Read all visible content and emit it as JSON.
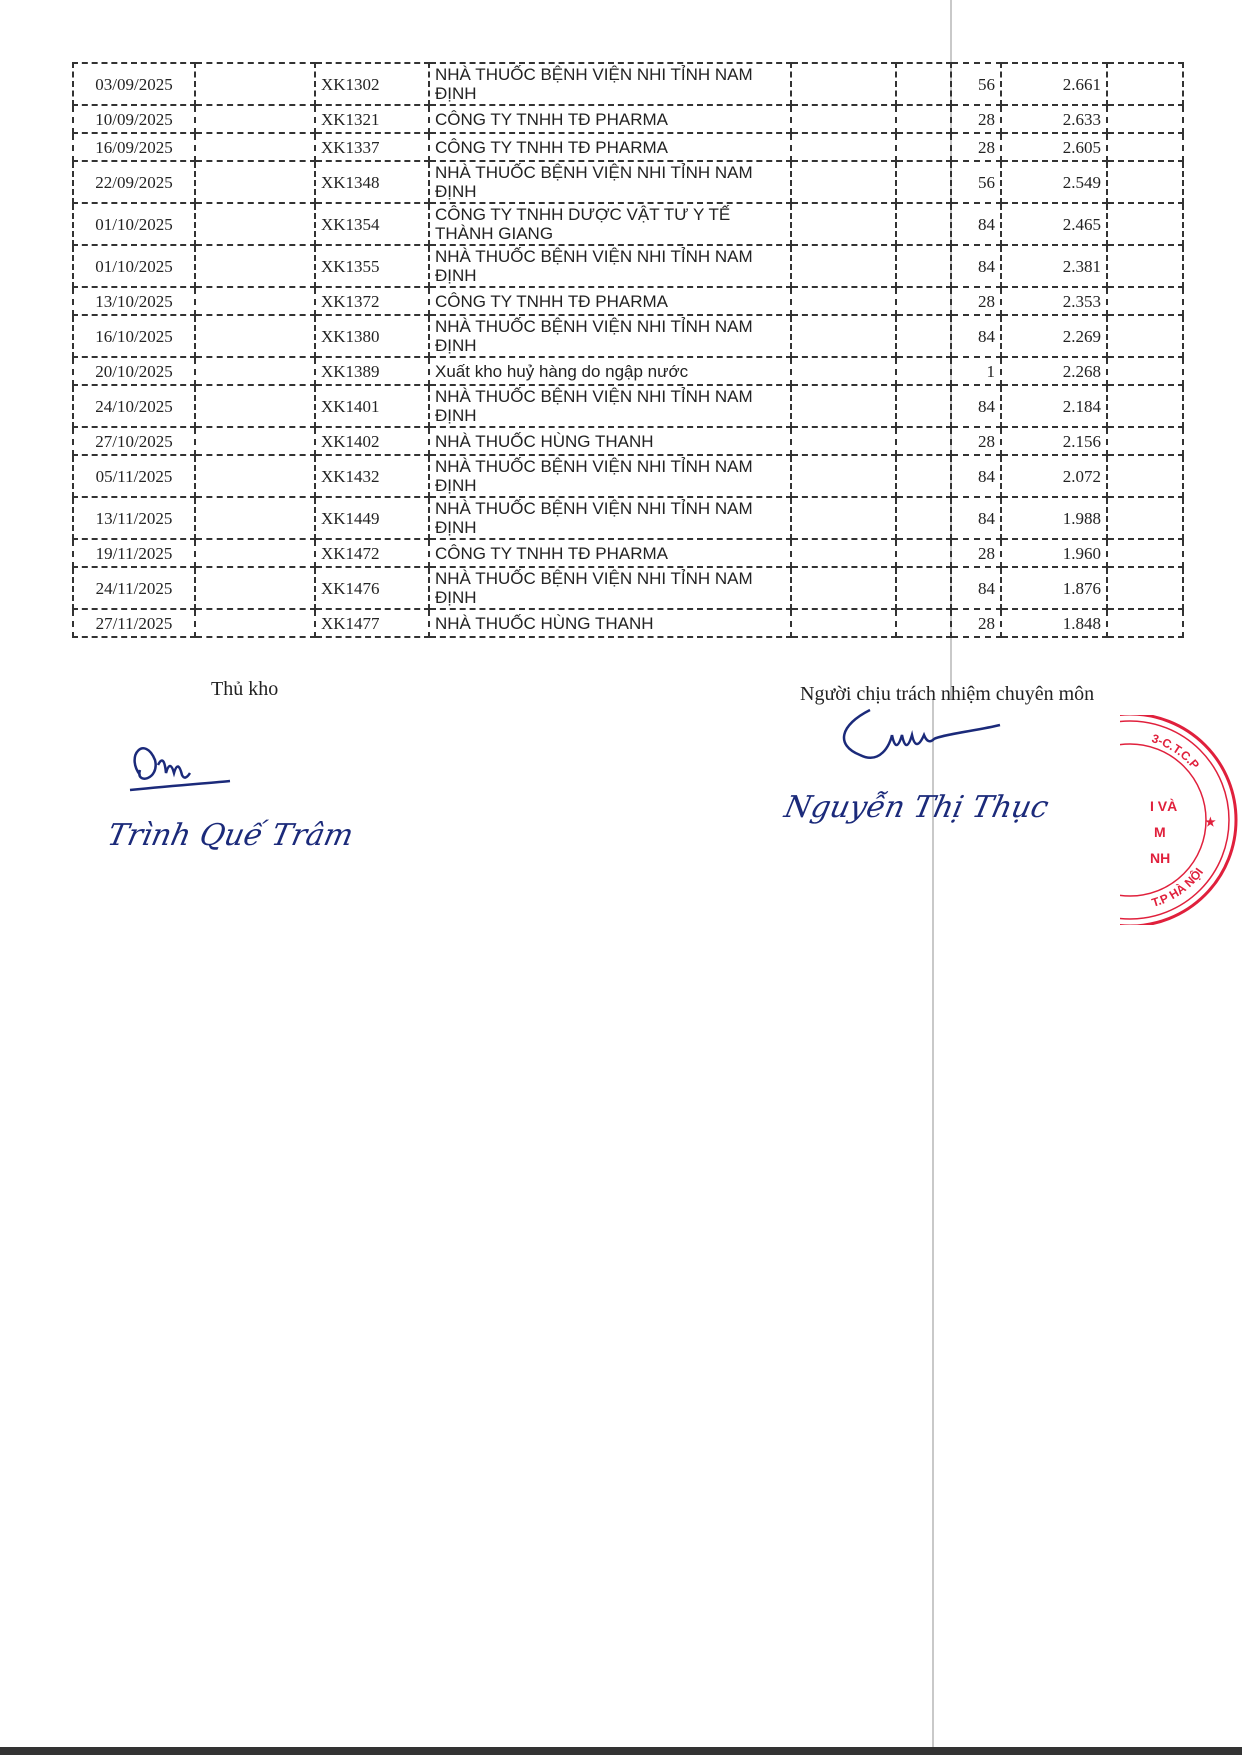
{
  "table": {
    "rows": [
      {
        "date": "03/09/2025",
        "col2": "",
        "voucher": "XK1302",
        "description": "NHÀ THUỐC BỆNH VIỆN NHI TỈNH NAM ĐỊNH",
        "col5": "",
        "col6": "",
        "quantity": "56",
        "balance": "2.661",
        "col9": "",
        "tall": true
      },
      {
        "date": "10/09/2025",
        "col2": "",
        "voucher": "XK1321",
        "description": "CÔNG TY TNHH TĐ PHARMA",
        "col5": "",
        "col6": "",
        "quantity": "28",
        "balance": "2.633",
        "col9": "",
        "tall": false
      },
      {
        "date": "16/09/2025",
        "col2": "",
        "voucher": "XK1337",
        "description": "CÔNG TY TNHH TĐ PHARMA",
        "col5": "",
        "col6": "",
        "quantity": "28",
        "balance": "2.605",
        "col9": "",
        "tall": false
      },
      {
        "date": "22/09/2025",
        "col2": "",
        "voucher": "XK1348",
        "description": "NHÀ THUỐC BỆNH VIỆN NHI TỈNH NAM ĐỊNH",
        "col5": "",
        "col6": "",
        "quantity": "56",
        "balance": "2.549",
        "col9": "",
        "tall": true
      },
      {
        "date": "01/10/2025",
        "col2": "",
        "voucher": "XK1354",
        "description": "CÔNG TY TNHH DƯỢC VẬT TƯ Y TẾ THÀNH GIANG",
        "col5": "",
        "col6": "",
        "quantity": "84",
        "balance": "2.465",
        "col9": "",
        "tall": true
      },
      {
        "date": "01/10/2025",
        "col2": "",
        "voucher": "XK1355",
        "description": "NHÀ THUỐC BỆNH VIỆN NHI TỈNH NAM ĐỊNH",
        "col5": "",
        "col6": "",
        "quantity": "84",
        "balance": "2.381",
        "col9": "",
        "tall": true
      },
      {
        "date": "13/10/2025",
        "col2": "",
        "voucher": "XK1372",
        "description": "CÔNG TY TNHH TĐ PHARMA",
        "col5": "",
        "col6": "",
        "quantity": "28",
        "balance": "2.353",
        "col9": "",
        "tall": false
      },
      {
        "date": "16/10/2025",
        "col2": "",
        "voucher": "XK1380",
        "description": "NHÀ THUỐC BỆNH VIỆN NHI TỈNH NAM ĐỊNH",
        "col5": "",
        "col6": "",
        "quantity": "84",
        "balance": "2.269",
        "col9": "",
        "tall": true
      },
      {
        "date": "20/10/2025",
        "col2": "",
        "voucher": "XK1389",
        "description": "Xuất kho huỷ hàng do ngập nước",
        "col5": "",
        "col6": "",
        "quantity": "1",
        "balance": "2.268",
        "col9": "",
        "tall": false
      },
      {
        "date": "24/10/2025",
        "col2": "",
        "voucher": "XK1401",
        "description": "NHÀ THUỐC BỆNH VIỆN NHI TỈNH NAM ĐỊNH",
        "col5": "",
        "col6": "",
        "quantity": "84",
        "balance": "2.184",
        "col9": "",
        "tall": true
      },
      {
        "date": "27/10/2025",
        "col2": "",
        "voucher": "XK1402",
        "description": "NHÀ THUỐC HÙNG THANH",
        "col5": "",
        "col6": "",
        "quantity": "28",
        "balance": "2.156",
        "col9": "",
        "tall": false
      },
      {
        "date": "05/11/2025",
        "col2": "",
        "voucher": "XK1432",
        "description": "NHÀ THUỐC BỆNH VIỆN NHI TỈNH NAM ĐỊNH",
        "col5": "",
        "col6": "",
        "quantity": "84",
        "balance": "2.072",
        "col9": "",
        "tall": true
      },
      {
        "date": "13/11/2025",
        "col2": "",
        "voucher": "XK1449",
        "description": "NHÀ THUỐC BỆNH VIỆN NHI TỈNH NAM ĐỊNH",
        "col5": "",
        "col6": "",
        "quantity": "84",
        "balance": "1.988",
        "col9": "",
        "tall": true
      },
      {
        "date": "19/11/2025",
        "col2": "",
        "voucher": "XK1472",
        "description": "CÔNG TY TNHH TĐ PHARMA",
        "col5": "",
        "col6": "",
        "quantity": "28",
        "balance": "1.960",
        "col9": "",
        "tall": false
      },
      {
        "date": "24/11/2025",
        "col2": "",
        "voucher": "XK1476",
        "description": "NHÀ THUỐC BỆNH VIỆN NHI TỈNH NAM ĐỊNH",
        "col5": "",
        "col6": "",
        "quantity": "84",
        "balance": "1.876",
        "col9": "",
        "tall": true
      },
      {
        "date": "27/11/2025",
        "col2": "",
        "voucher": "XK1477",
        "description": "NHÀ THUỐC HÙNG THANH",
        "col5": "",
        "col6": "",
        "quantity": "28",
        "balance": "1.848",
        "col9": "",
        "tall": false
      }
    ]
  },
  "signatures": {
    "left_title": "Thủ kho",
    "left_name": "Trình Quế Trâm",
    "right_title": "Người chịu trách nhiệm chuyên môn",
    "right_name": "Nguyễn Thị Thục"
  },
  "stamp": {
    "outer_text": "3-C.T.C.P ★ T.P HÀ NỘI",
    "inner_lines": [
      "I VÀ",
      "M",
      "NH"
    ],
    "color": "#e0203c"
  },
  "colors": {
    "ink": "#222222",
    "signature_ink": "#1b2a7a"
  }
}
